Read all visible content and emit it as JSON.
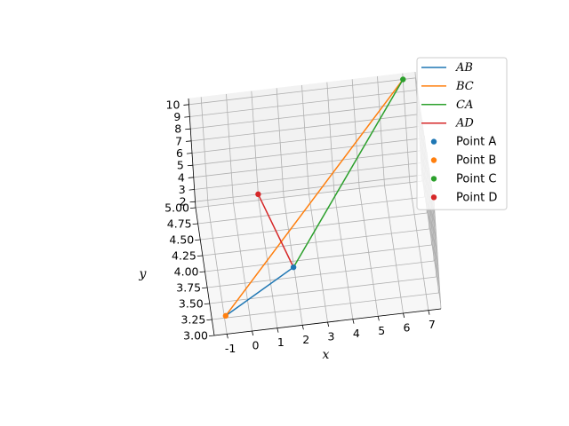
{
  "chart_data": {
    "type": "line3d",
    "title": "",
    "xlabel": "x",
    "ylabel": "y",
    "zlabel": "",
    "xlim": [
      -1.5,
      7.5
    ],
    "ylim": [
      3.0,
      5.0
    ],
    "zlim": [
      1.5,
      10.5
    ],
    "x_ticks": [
      -1,
      0,
      1,
      2,
      3,
      4,
      5,
      6,
      7
    ],
    "y_ticks": [
      "3.00",
      "3.25",
      "3.50",
      "3.75",
      "4.00",
      "4.25",
      "4.50",
      "4.75",
      "5.00"
    ],
    "z_ticks": [
      2,
      3,
      4,
      5,
      6,
      7,
      8,
      9,
      10
    ],
    "grid": true,
    "legend": "top-right",
    "points": [
      {
        "name": "Point A",
        "x": 2,
        "y": 4,
        "z": 1,
        "color": "#1f77b4"
      },
      {
        "name": "Point B",
        "x": -1,
        "y": 3,
        "z": 3,
        "color": "#ff7f0e"
      },
      {
        "name": "Point C",
        "x": 7,
        "y": 5,
        "z": 10,
        "color": "#2ca02c"
      },
      {
        "name": "Point D",
        "x": 1,
        "y": 5,
        "z": 2,
        "color": "#d62728"
      }
    ],
    "segments": [
      {
        "name": "AB",
        "from": 0,
        "to": 1,
        "color": "#1f77b4"
      },
      {
        "name": "BC",
        "from": 1,
        "to": 2,
        "color": "#ff7f0e"
      },
      {
        "name": "CA",
        "from": 2,
        "to": 0,
        "color": "#2ca02c"
      },
      {
        "name": "AD",
        "from": 0,
        "to": 3,
        "color": "#d62728"
      }
    ]
  }
}
